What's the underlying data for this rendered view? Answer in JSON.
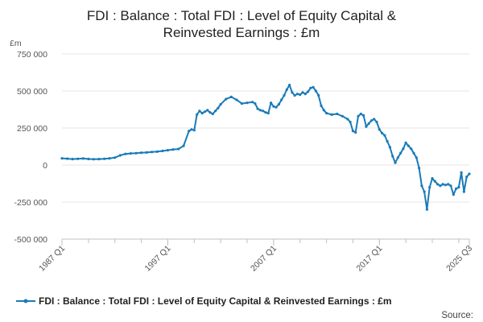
{
  "chart_data": {
    "type": "line",
    "title_lines": [
      "FDI : Balance : Total FDI : Level of Equity Capital &",
      "Reinvested Earnings : £m"
    ],
    "y_unit": "£m",
    "ylim": [
      -500000,
      750000
    ],
    "y_ticks": [
      750000,
      500000,
      250000,
      0,
      -250000,
      -500000
    ],
    "y_tick_labels": [
      "750 000",
      "500 000",
      "250 000",
      "0",
      "-250 000",
      "-500 000"
    ],
    "x_tick_labels": [
      "1987 Q1",
      "1997 Q1",
      "2007 Q1",
      "2017 Q1",
      "2025 Q3"
    ],
    "x_tick_values": [
      1987.0,
      1997.0,
      2007.0,
      2017.0,
      2025.5
    ],
    "grid": true,
    "legend_position": "bottom",
    "color": "#1a7bb8",
    "series": [
      {
        "name": "FDI : Balance : Total FDI : Level of Equity Capital & Reinvested Earnings : £m",
        "x": [
          1987.0,
          1987.5,
          1988.0,
          1988.5,
          1989.0,
          1989.5,
          1990.0,
          1990.5,
          1991.0,
          1991.5,
          1992.0,
          1992.5,
          1993.0,
          1993.5,
          1994.0,
          1994.5,
          1995.0,
          1995.5,
          1996.0,
          1996.5,
          1997.0,
          1997.5,
          1998.0,
          1998.5,
          1999.0,
          1999.25,
          1999.5,
          1999.75,
          2000.0,
          2000.25,
          2000.5,
          2000.75,
          2001.0,
          2001.25,
          2001.5,
          2001.75,
          2002.0,
          2002.5,
          2003.0,
          2003.5,
          2004.0,
          2004.5,
          2005.0,
          2005.25,
          2005.5,
          2005.75,
          2006.0,
          2006.25,
          2006.5,
          2006.75,
          2007.0,
          2007.25,
          2007.5,
          2007.75,
          2008.0,
          2008.25,
          2008.5,
          2008.75,
          2009.0,
          2009.25,
          2009.5,
          2009.75,
          2010.0,
          2010.25,
          2010.5,
          2010.75,
          2011.0,
          2011.25,
          2011.5,
          2011.75,
          2012.0,
          2012.5,
          2013.0,
          2013.5,
          2014.0,
          2014.25,
          2014.5,
          2014.75,
          2015.0,
          2015.25,
          2015.5,
          2015.75,
          2016.0,
          2016.25,
          2016.5,
          2016.75,
          2017.0,
          2017.25,
          2017.5,
          2017.75,
          2018.0,
          2018.25,
          2018.5,
          2018.75,
          2019.0,
          2019.25,
          2019.5,
          2019.75,
          2020.0,
          2020.25,
          2020.5,
          2020.75,
          2021.0,
          2021.25,
          2021.5,
          2021.75,
          2022.0,
          2022.25,
          2022.5,
          2022.75,
          2023.0,
          2023.25,
          2023.5,
          2023.75,
          2024.0,
          2024.25,
          2024.5,
          2024.75,
          2025.0,
          2025.25,
          2025.5
        ],
        "values": [
          45000,
          43000,
          40000,
          42000,
          44000,
          41000,
          39000,
          40000,
          42000,
          45000,
          50000,
          65000,
          75000,
          78000,
          80000,
          83000,
          85000,
          88000,
          90000,
          95000,
          100000,
          105000,
          108000,
          130000,
          230000,
          240000,
          235000,
          340000,
          365000,
          350000,
          360000,
          370000,
          355000,
          345000,
          365000,
          385000,
          410000,
          445000,
          460000,
          440000,
          415000,
          420000,
          425000,
          415000,
          380000,
          370000,
          365000,
          355000,
          350000,
          420000,
          395000,
          390000,
          410000,
          440000,
          470000,
          510000,
          540000,
          490000,
          470000,
          480000,
          475000,
          490000,
          480000,
          495000,
          520000,
          525000,
          500000,
          470000,
          400000,
          370000,
          350000,
          340000,
          345000,
          330000,
          310000,
          290000,
          230000,
          220000,
          330000,
          345000,
          335000,
          260000,
          280000,
          300000,
          310000,
          290000,
          240000,
          215000,
          200000,
          160000,
          120000,
          60000,
          15000,
          50000,
          80000,
          110000,
          150000,
          130000,
          110000,
          80000,
          50000,
          -20000,
          -140000,
          -180000,
          -300000,
          -150000,
          -90000,
          -110000,
          -130000,
          -140000,
          -130000,
          -135000,
          -130000,
          -140000,
          -200000,
          -160000,
          -150000,
          -50000,
          -180000,
          -80000,
          -60000
        ]
      }
    ]
  },
  "legend": {
    "label": "FDI : Balance : Total FDI : Level of Equity Capital & Reinvested Earnings : £m"
  },
  "source_label": "Source:"
}
